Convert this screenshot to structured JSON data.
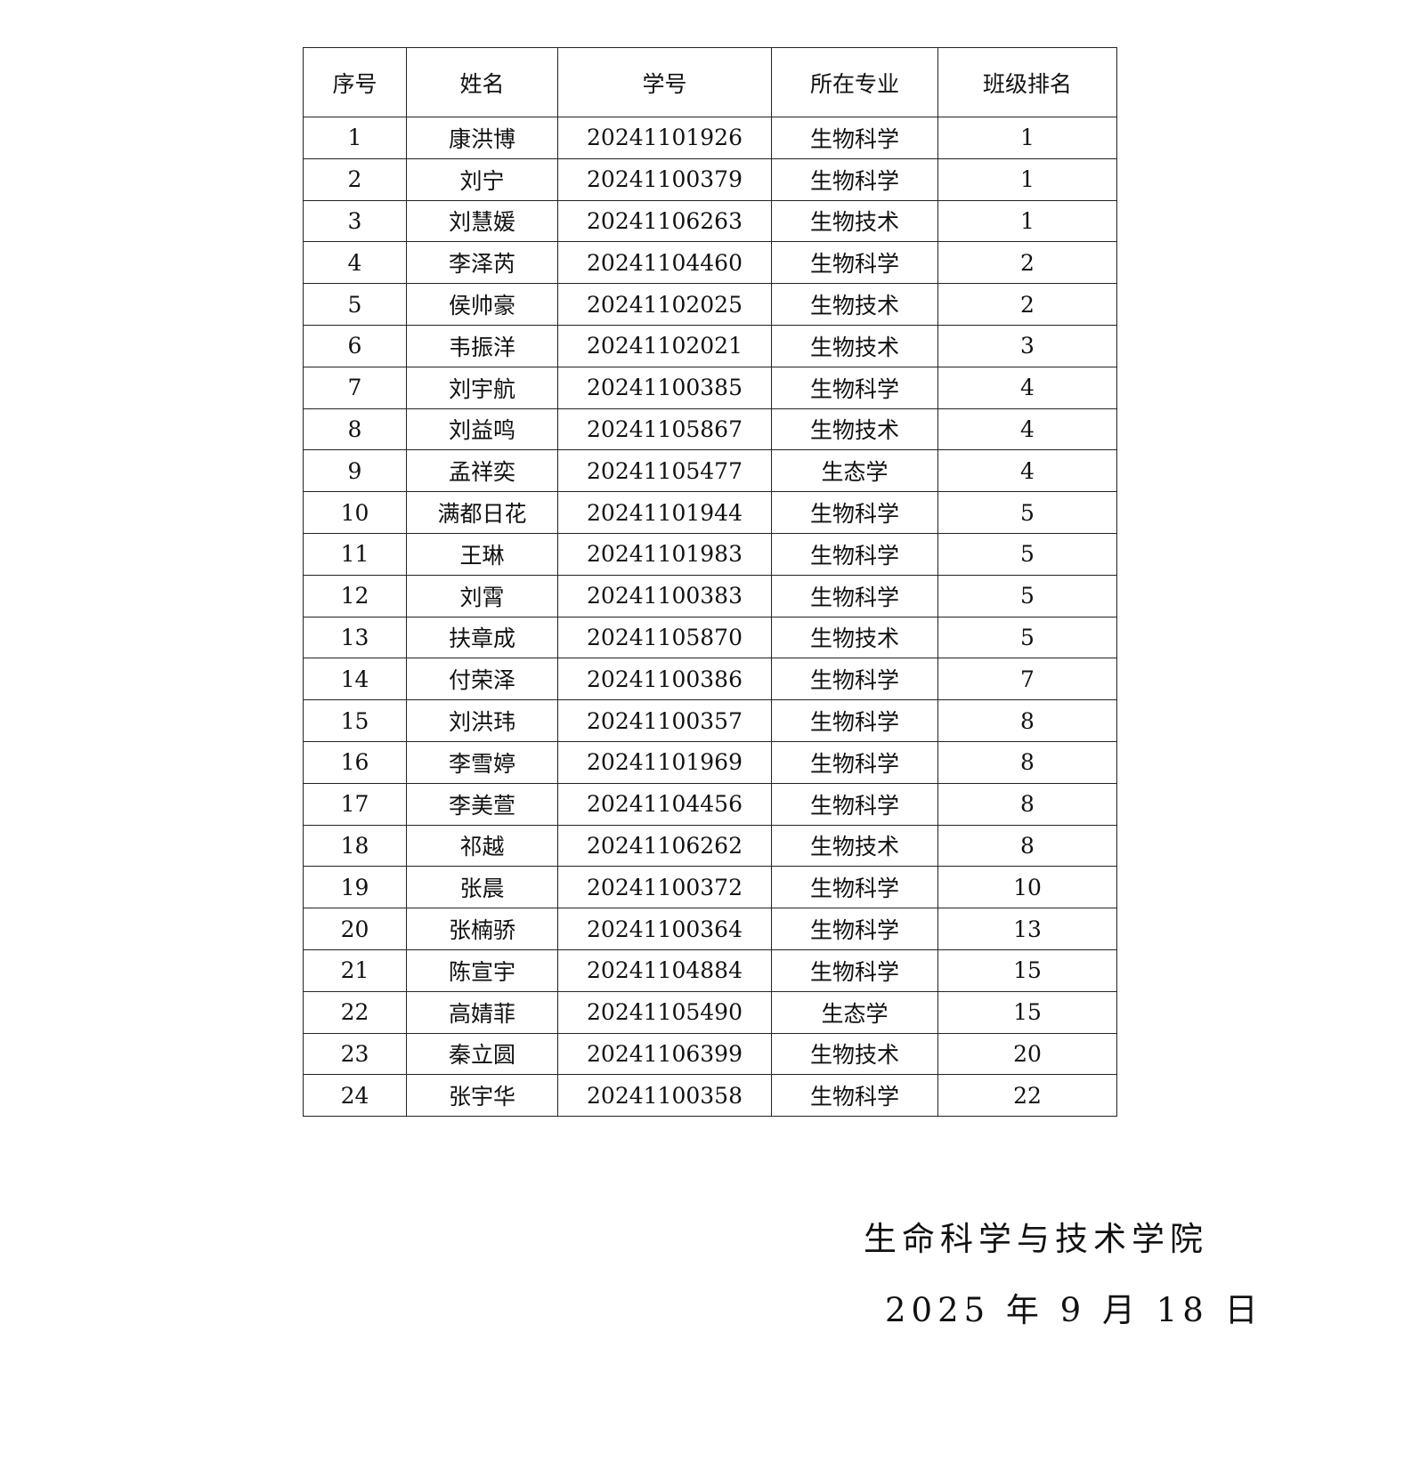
{
  "table": {
    "headers": [
      "序号",
      "姓名",
      "学号",
      "所在专业",
      "班级排名"
    ],
    "rows": [
      [
        "1",
        "康洪博",
        "20241101926",
        "生物科学",
        "1"
      ],
      [
        "2",
        "刘宁",
        "20241100379",
        "生物科学",
        "1"
      ],
      [
        "3",
        "刘慧媛",
        "20241106263",
        "生物技术",
        "1"
      ],
      [
        "4",
        "李泽芮",
        "20241104460",
        "生物科学",
        "2"
      ],
      [
        "5",
        "侯帅豪",
        "20241102025",
        "生物技术",
        "2"
      ],
      [
        "6",
        "韦振洋",
        "20241102021",
        "生物技术",
        "3"
      ],
      [
        "7",
        "刘宇航",
        "20241100385",
        "生物科学",
        "4"
      ],
      [
        "8",
        "刘益鸣",
        "20241105867",
        "生物技术",
        "4"
      ],
      [
        "9",
        "孟祥奕",
        "20241105477",
        "生态学",
        "4"
      ],
      [
        "10",
        "满都日花",
        "20241101944",
        "生物科学",
        "5"
      ],
      [
        "11",
        "王琳",
        "20241101983",
        "生物科学",
        "5"
      ],
      [
        "12",
        "刘霄",
        "20241100383",
        "生物科学",
        "5"
      ],
      [
        "13",
        "扶章成",
        "20241105870",
        "生物技术",
        "5"
      ],
      [
        "14",
        "付荣泽",
        "20241100386",
        "生物科学",
        "7"
      ],
      [
        "15",
        "刘洪玮",
        "20241100357",
        "生物科学",
        "8"
      ],
      [
        "16",
        "李雪婷",
        "20241101969",
        "生物科学",
        "8"
      ],
      [
        "17",
        "李美萱",
        "20241104456",
        "生物科学",
        "8"
      ],
      [
        "18",
        "祁越",
        "20241106262",
        "生物技术",
        "8"
      ],
      [
        "19",
        "张晨",
        "20241100372",
        "生物科学",
        "10"
      ],
      [
        "20",
        "张楠骄",
        "20241100364",
        "生物科学",
        "13"
      ],
      [
        "21",
        "陈宣宇",
        "20241104884",
        "生物科学",
        "15"
      ],
      [
        "22",
        "高婧菲",
        "20241105490",
        "生态学",
        "15"
      ],
      [
        "23",
        "秦立圆",
        "20241106399",
        "生物技术",
        "20"
      ],
      [
        "24",
        "张宇华",
        "20241100358",
        "生物科学",
        "22"
      ]
    ]
  },
  "footer": {
    "organization": "生命科学与技术学院",
    "date": "2025 年 9 月 18 日"
  }
}
